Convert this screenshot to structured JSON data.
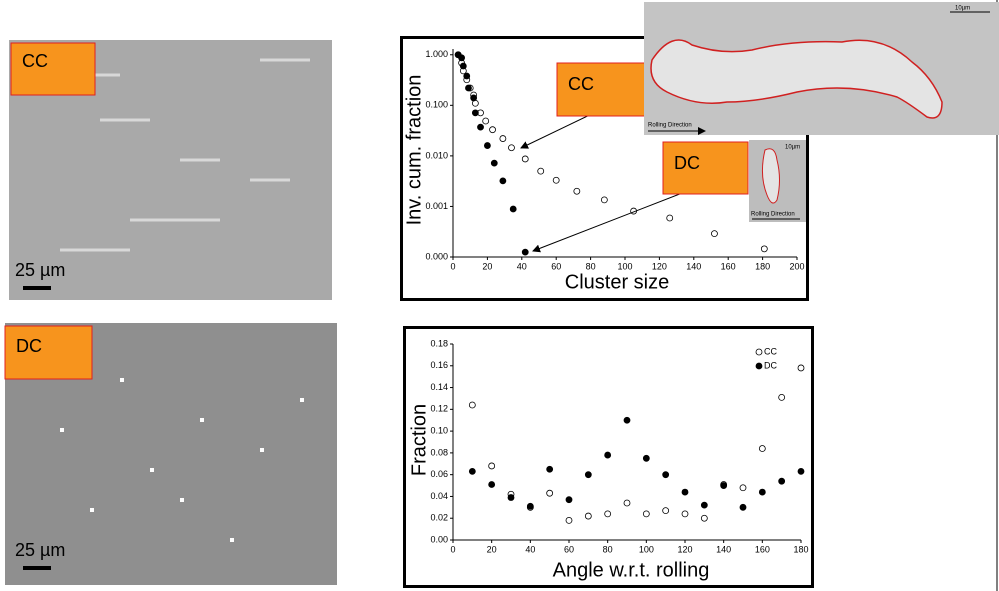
{
  "panels": [
    {
      "label": "CC",
      "scale_bar": "25 µm"
    },
    {
      "label": "DC",
      "scale_bar": "25 µm"
    }
  ],
  "insets": [
    {
      "scale_bar": "10µm",
      "direction": "Rolling Direction"
    },
    {
      "scale_bar": "10µm",
      "direction": "Rolling Direction"
    }
  ],
  "chart_data": [
    {
      "type": "scatter",
      "y_label": "Inv. cum. fraction",
      "x_label": "Cluster size",
      "log_y": true,
      "legend": false,
      "xlim": [
        0,
        200
      ],
      "xticks": [
        0,
        20,
        40,
        60,
        80,
        100,
        120,
        140,
        160,
        180,
        200
      ],
      "ylim": [
        0.0001,
        1.3
      ],
      "yticks": [
        {
          "value": 0.0001,
          "label": "0.000"
        },
        {
          "value": 0.001,
          "label": "0.001"
        },
        {
          "value": 0.01,
          "label": "0.010"
        },
        {
          "value": 0.1,
          "label": "0.100"
        },
        {
          "value": 1,
          "label": "1.000"
        }
      ],
      "series": [
        {
          "name": "CC",
          "color": "#000000",
          "marker": "open",
          "x": [
            3,
            5,
            6,
            8,
            10,
            12,
            13,
            16,
            19,
            23,
            29,
            34,
            42,
            51,
            60,
            72,
            88,
            105,
            126,
            152,
            181
          ],
          "values": [
            1.0,
            0.69,
            0.48,
            0.32,
            0.22,
            0.16,
            0.11,
            0.071,
            0.049,
            0.033,
            0.022,
            0.0145,
            0.0087,
            0.005,
            0.0033,
            0.002,
            0.00135,
            0.00081,
            0.00059,
            0.00029,
            0.000145
          ]
        },
        {
          "name": "DC",
          "color": "#000000",
          "marker": "filled",
          "x": [
            3,
            5,
            6,
            8,
            9,
            12,
            13,
            16,
            20,
            24,
            29,
            35,
            42
          ],
          "values": [
            1.0,
            0.87,
            0.6,
            0.38,
            0.22,
            0.14,
            0.071,
            0.037,
            0.016,
            0.0072,
            0.0032,
            0.00089,
            0.000125
          ]
        }
      ]
    },
    {
      "type": "scatter",
      "y_label": "Fraction",
      "x_label": "Angle w.r.t. rolling",
      "log_y": false,
      "legend": "upper right",
      "xlim": [
        0,
        180
      ],
      "xticks": [
        0,
        20,
        40,
        60,
        80,
        100,
        120,
        140,
        160,
        180
      ],
      "ylim": [
        0,
        0.18
      ],
      "yticks": [
        {
          "value": 0,
          "label": "0.00"
        },
        0.02,
        0.04,
        0.06,
        0.08,
        {
          "value": 0.1,
          "label": "0.10"
        },
        0.12,
        0.14,
        0.16,
        0.18
      ],
      "series": [
        {
          "name": "CC",
          "color": "#000000",
          "marker": "open",
          "x": [
            10,
            20,
            30,
            40,
            50,
            60,
            70,
            80,
            90,
            100,
            110,
            120,
            130,
            140,
            150,
            160,
            170,
            180
          ],
          "values": [
            0.124,
            0.068,
            0.042,
            0.03,
            0.043,
            0.018,
            0.022,
            0.024,
            0.034,
            0.024,
            0.027,
            0.024,
            0.02,
            0.051,
            0.048,
            0.084,
            0.131,
            0.158
          ]
        },
        {
          "name": "DC",
          "color": "#000000",
          "marker": "filled",
          "x": [
            10,
            20,
            30,
            40,
            50,
            60,
            70,
            80,
            90,
            100,
            110,
            120,
            130,
            140,
            150,
            160,
            170,
            180
          ],
          "values": [
            0.063,
            0.051,
            0.039,
            0.031,
            0.065,
            0.037,
            0.06,
            0.078,
            0.11,
            0.075,
            0.06,
            0.044,
            0.032,
            0.05,
            0.03,
            0.044,
            0.054,
            0.063
          ]
        }
      ]
    }
  ]
}
